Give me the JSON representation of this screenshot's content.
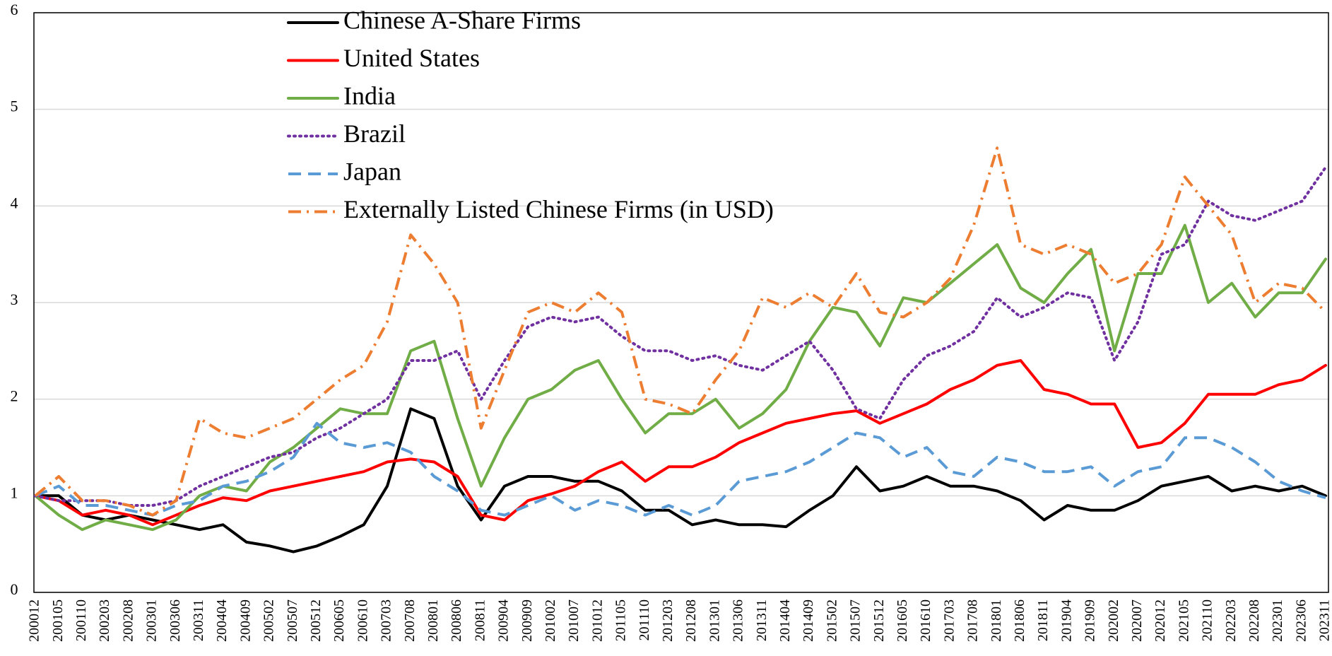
{
  "chart_data": {
    "type": "line",
    "categories": [
      "200012",
      "200105",
      "200110",
      "200203",
      "200208",
      "200301",
      "200306",
      "200311",
      "200404",
      "200409",
      "200502",
      "200507",
      "200512",
      "200605",
      "200610",
      "200703",
      "200708",
      "200801",
      "200806",
      "200811",
      "200904",
      "200909",
      "201002",
      "201007",
      "201012",
      "201105",
      "201110",
      "201203",
      "201208",
      "201301",
      "201306",
      "201311",
      "201404",
      "201409",
      "201502",
      "201507",
      "201512",
      "201605",
      "201610",
      "201703",
      "201708",
      "201801",
      "201806",
      "201811",
      "201904",
      "201909",
      "202002",
      "202007",
      "202012",
      "202105",
      "202110",
      "202203",
      "202208",
      "202301",
      "202306",
      "202311"
    ],
    "series": [
      {
        "name": "Chinese A-Share Firms",
        "color": "#000000",
        "dash": "solid",
        "values": [
          1.0,
          1.0,
          0.8,
          0.75,
          0.8,
          0.75,
          0.7,
          0.65,
          0.7,
          0.52,
          0.48,
          0.42,
          0.48,
          0.58,
          0.7,
          1.1,
          1.9,
          1.8,
          1.1,
          0.75,
          1.1,
          1.2,
          1.2,
          1.15,
          1.15,
          1.05,
          0.85,
          0.85,
          0.7,
          0.75,
          0.7,
          0.7,
          0.68,
          0.85,
          1.0,
          1.3,
          1.05,
          1.1,
          1.2,
          1.1,
          1.1,
          1.05,
          0.95,
          0.75,
          0.9,
          0.85,
          0.85,
          0.95,
          1.1,
          1.15,
          1.2,
          1.05,
          1.1,
          1.05,
          1.1,
          1.0
        ]
      },
      {
        "name": "United States",
        "color": "#ff0000",
        "dash": "solid",
        "values": [
          1.0,
          0.95,
          0.8,
          0.85,
          0.8,
          0.7,
          0.8,
          0.9,
          0.98,
          0.95,
          1.05,
          1.1,
          1.15,
          1.2,
          1.25,
          1.35,
          1.38,
          1.35,
          1.2,
          0.8,
          0.75,
          0.95,
          1.02,
          1.1,
          1.25,
          1.35,
          1.15,
          1.3,
          1.3,
          1.4,
          1.55,
          1.65,
          1.75,
          1.8,
          1.85,
          1.88,
          1.75,
          1.85,
          1.95,
          2.1,
          2.2,
          2.35,
          2.4,
          2.1,
          2.05,
          1.95,
          1.95,
          1.5,
          1.55,
          1.75,
          2.05,
          2.05,
          2.05,
          2.15,
          2.2,
          2.35
        ]
      },
      {
        "name": "India",
        "color": "#70ad47",
        "dash": "solid",
        "values": [
          1.0,
          0.8,
          0.65,
          0.75,
          0.7,
          0.65,
          0.75,
          1.0,
          1.1,
          1.05,
          1.35,
          1.5,
          1.7,
          1.9,
          1.85,
          1.85,
          2.5,
          2.6,
          1.8,
          1.1,
          1.6,
          2.0,
          2.1,
          2.3,
          2.4,
          2.0,
          1.65,
          1.85,
          1.85,
          2.0,
          1.7,
          1.85,
          2.1,
          2.6,
          2.95,
          2.9,
          2.55,
          3.05,
          3.0,
          3.2,
          3.4,
          3.6,
          3.15,
          3.0,
          3.3,
          3.55,
          2.5,
          3.3,
          3.3,
          3.8,
          3.0,
          3.2,
          2.85,
          3.1,
          3.1,
          3.45
        ]
      },
      {
        "name": "Brazil",
        "color": "#7030a0",
        "dash": "dotted",
        "values": [
          1.0,
          0.95,
          0.95,
          0.95,
          0.9,
          0.9,
          0.95,
          1.1,
          1.2,
          1.3,
          1.4,
          1.45,
          1.6,
          1.7,
          1.85,
          2.0,
          2.4,
          2.4,
          2.5,
          2.0,
          2.4,
          2.75,
          2.85,
          2.8,
          2.85,
          2.65,
          2.5,
          2.5,
          2.4,
          2.45,
          2.35,
          2.3,
          2.45,
          2.6,
          2.3,
          1.9,
          1.8,
          2.2,
          2.45,
          2.55,
          2.7,
          3.05,
          2.85,
          2.95,
          3.1,
          3.05,
          2.4,
          2.8,
          3.5,
          3.6,
          4.05,
          3.9,
          3.85,
          3.95,
          4.05,
          4.4
        ]
      },
      {
        "name": "Japan",
        "color": "#5b9bd5",
        "dash": "dashed",
        "values": [
          1.0,
          1.1,
          0.9,
          0.9,
          0.85,
          0.8,
          0.9,
          0.95,
          1.1,
          1.15,
          1.25,
          1.4,
          1.75,
          1.55,
          1.5,
          1.55,
          1.45,
          1.2,
          1.05,
          0.85,
          0.8,
          0.9,
          1.0,
          0.85,
          0.95,
          0.9,
          0.8,
          0.9,
          0.8,
          0.9,
          1.15,
          1.2,
          1.25,
          1.35,
          1.5,
          1.65,
          1.6,
          1.4,
          1.5,
          1.25,
          1.2,
          1.4,
          1.35,
          1.25,
          1.25,
          1.3,
          1.1,
          1.25,
          1.3,
          1.6,
          1.6,
          1.5,
          1.35,
          1.15,
          1.05,
          0.98
        ]
      },
      {
        "name": "Externally Listed Chinese Firms (in USD)",
        "color": "#ed7d31",
        "dash": "dashdot",
        "values": [
          1.0,
          1.2,
          0.95,
          0.95,
          0.9,
          0.8,
          0.95,
          1.8,
          1.65,
          1.6,
          1.7,
          1.8,
          2.0,
          2.2,
          2.35,
          2.8,
          3.7,
          3.4,
          3.0,
          1.7,
          2.3,
          2.9,
          3.0,
          2.9,
          3.1,
          2.9,
          2.0,
          1.95,
          1.85,
          2.2,
          2.5,
          3.05,
          2.95,
          3.1,
          2.95,
          3.3,
          2.9,
          2.85,
          3.0,
          3.25,
          3.8,
          4.6,
          3.6,
          3.5,
          3.6,
          3.5,
          3.2,
          3.3,
          3.6,
          4.3,
          4.0,
          3.7,
          3.0,
          3.2,
          3.15,
          2.9
        ]
      }
    ],
    "ylim": [
      0,
      6
    ],
    "yticks": [
      0,
      1,
      2,
      3,
      4,
      5,
      6
    ],
    "grid": true,
    "legend": "upper-left"
  }
}
